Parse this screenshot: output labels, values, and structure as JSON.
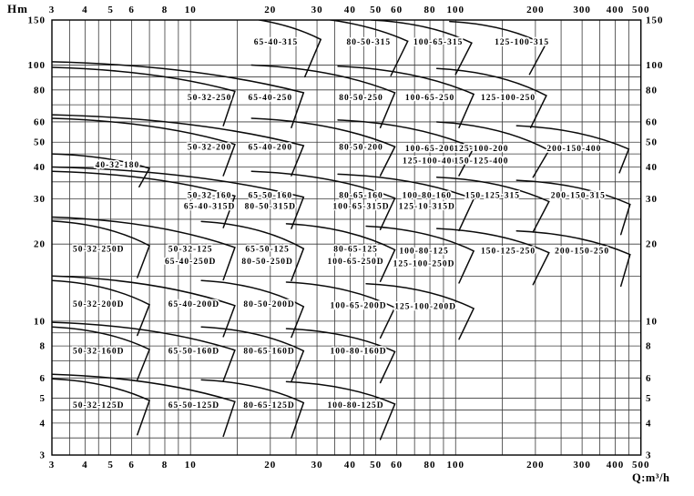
{
  "chart_data": {
    "type": "line",
    "title": "",
    "xlabel": "Q:m³/h",
    "ylabel": "Hm",
    "x_scale": "log",
    "y_scale": "log",
    "xlim": [
      3,
      500
    ],
    "ylim": [
      3,
      150
    ],
    "grid": true,
    "x_ticks": [
      3,
      4,
      5,
      6,
      8,
      10,
      20,
      30,
      40,
      50,
      60,
      80,
      100,
      200,
      300,
      400,
      500
    ],
    "y_ticks": [
      150,
      100,
      80,
      60,
      50,
      40,
      30,
      20,
      10,
      8,
      6,
      5,
      4,
      3
    ],
    "x_gridlines": [
      3,
      3.5,
      4,
      4.5,
      5,
      6,
      7,
      8,
      9,
      10,
      15,
      20,
      25,
      30,
      35,
      40,
      45,
      50,
      60,
      70,
      80,
      90,
      100,
      150,
      200,
      250,
      300,
      350,
      400,
      450,
      500
    ],
    "y_gridlines": [
      3,
      3.5,
      4,
      4.5,
      5,
      6,
      7,
      8,
      9,
      10,
      15,
      20,
      25,
      30,
      35,
      40,
      45,
      50,
      60,
      70,
      80,
      90,
      100,
      150
    ],
    "colors": {
      "grid": "#3a3a3a",
      "curve": "#0a0a0a",
      "text": "#000000",
      "background": "#ffffff"
    },
    "pump_regions": [
      {
        "labels": [
          {
            "text": "65-40-315",
            "q": 21,
            "h": 124
          }
        ],
        "arc_from": [
          13.5,
          155
        ],
        "arc_to": [
          31,
          126
        ],
        "tail": [
          27,
          90
        ]
      },
      {
        "labels": [
          {
            "text": "80-50-315",
            "q": 47,
            "h": 124
          }
        ],
        "arc_from": [
          24,
          155
        ],
        "arc_to": [
          66,
          124
        ],
        "tail": [
          57,
          91
        ]
      },
      {
        "labels": [
          {
            "text": "100-65-315",
            "q": 86,
            "h": 124
          }
        ],
        "arc_from": [
          48,
          150
        ],
        "arc_to": [
          115,
          122
        ],
        "tail": [
          100,
          92
        ]
      },
      {
        "labels": [
          {
            "text": "125-100-315",
            "q": 178,
            "h": 124
          }
        ],
        "arc_from": [
          95,
          148
        ],
        "arc_to": [
          218,
          120
        ],
        "tail": [
          190,
          92
        ]
      },
      {
        "labels": [
          {
            "text": "50-32-250",
            "q": 11.8,
            "h": 75
          }
        ],
        "arc_from": [
          3,
          98
        ],
        "arc_to": [
          14.7,
          79
        ],
        "tail": [
          13.3,
          58
        ]
      },
      {
        "labels": [
          {
            "text": "65-40-250",
            "q": 20,
            "h": 75
          }
        ],
        "arc_from": [
          3,
          103
        ],
        "arc_to": [
          26.7,
          78
        ],
        "tail": [
          24,
          57
        ]
      },
      {
        "labels": [
          {
            "text": "80-50-250",
            "q": 44,
            "h": 75
          }
        ],
        "arc_from": [
          17,
          100
        ],
        "arc_to": [
          59,
          78
        ],
        "tail": [
          52,
          57
        ]
      },
      {
        "labels": [
          {
            "text": "100-65-250",
            "q": 80,
            "h": 75
          }
        ],
        "arc_from": [
          36,
          99
        ],
        "arc_to": [
          117,
          77
        ],
        "tail": [
          103,
          57
        ]
      },
      {
        "labels": [
          {
            "text": "125-100-250",
            "q": 158,
            "h": 75
          }
        ],
        "arc_from": [
          85,
          97
        ],
        "arc_to": [
          220,
          76
        ],
        "tail": [
          192,
          57
        ]
      },
      {
        "labels": [
          {
            "text": "50-32-200",
            "q": 11.8,
            "h": 48
          }
        ],
        "arc_from": [
          3,
          62
        ],
        "arc_to": [
          14.7,
          49
        ],
        "tail": [
          13.3,
          37
        ]
      },
      {
        "labels": [
          {
            "text": "65-40-200",
            "q": 20,
            "h": 48
          }
        ],
        "arc_from": [
          3,
          64
        ],
        "arc_to": [
          26.7,
          48.5
        ],
        "tail": [
          24,
          37
        ]
      },
      {
        "labels": [
          {
            "text": "80-50-200",
            "q": 44,
            "h": 48
          }
        ],
        "arc_from": [
          17,
          62
        ],
        "arc_to": [
          59,
          48
        ],
        "tail": [
          52,
          37
        ]
      },
      {
        "labels": [
          {
            "text": "100-65-200",
            "q": 80,
            "h": 47.5
          },
          {
            "text": "125-100-400",
            "q": 80,
            "h": 42.5
          }
        ],
        "arc_from": [
          36,
          61
        ],
        "arc_to": [
          117,
          47.5
        ],
        "tail": [
          103,
          37
        ]
      },
      {
        "labels": [
          {
            "text": "125-100-200",
            "q": 125,
            "h": 47.5
          },
          {
            "text": "150-125-400",
            "q": 125,
            "h": 42.5
          }
        ],
        "arc_from": [
          85,
          60
        ],
        "arc_to": [
          225,
          46.5
        ],
        "tail": [
          196,
          36.5
        ]
      },
      {
        "labels": [
          {
            "text": "200-150-400",
            "q": 280,
            "h": 47.5
          }
        ],
        "arc_from": [
          170,
          58
        ],
        "arc_to": [
          450,
          47
        ],
        "tail": [
          415,
          38
        ]
      },
      {
        "labels": [
          {
            "text": "40-32-180",
            "q": 5.3,
            "h": 41
          }
        ],
        "arc_from": [
          3,
          45
        ],
        "arc_to": [
          7,
          39.5
        ],
        "tail": [
          6.4,
          33.5
        ]
      },
      {
        "labels": [
          {
            "text": "50-32-160",
            "q": 11.8,
            "h": 31.2
          },
          {
            "text": "65-40-315D",
            "q": 11.8,
            "h": 28.2
          }
        ],
        "arc_from": [
          3,
          38.5
        ],
        "arc_to": [
          14.7,
          30.8
        ],
        "tail": [
          13.3,
          23.2
        ]
      },
      {
        "labels": [
          {
            "text": "65-50-160",
            "q": 20,
            "h": 31.2
          },
          {
            "text": "80-50-315D",
            "q": 20,
            "h": 28.2
          }
        ],
        "arc_from": [
          3,
          40
        ],
        "arc_to": [
          26.7,
          30.5
        ],
        "tail": [
          24,
          23
        ]
      },
      {
        "labels": [
          {
            "text": "80-65-160",
            "q": 44,
            "h": 31.2
          },
          {
            "text": "100-65-315D",
            "q": 44,
            "h": 28.2
          }
        ],
        "arc_from": [
          17,
          38.5
        ],
        "arc_to": [
          59,
          30.2
        ],
        "tail": [
          52,
          22.8
        ]
      },
      {
        "labels": [
          {
            "text": "100-80-160",
            "q": 78,
            "h": 31.2
          },
          {
            "text": "125-10-315D",
            "q": 78,
            "h": 28.2
          }
        ],
        "arc_from": [
          36,
          37.5
        ],
        "arc_to": [
          117,
          30
        ],
        "tail": [
          103,
          22.6
        ]
      },
      {
        "labels": [
          {
            "text": "150-125-315",
            "q": 138,
            "h": 31.2
          }
        ],
        "arc_from": [
          85,
          36.5
        ],
        "arc_to": [
          225,
          29.3
        ],
        "tail": [
          196,
          22.3
        ]
      },
      {
        "labels": [
          {
            "text": "200-150-315",
            "q": 290,
            "h": 31.2
          }
        ],
        "arc_from": [
          170,
          35.5
        ],
        "arc_to": [
          455,
          28.6
        ],
        "tail": [
          420,
          21.8
        ]
      },
      {
        "labels": [
          {
            "text": "50-32-250D",
            "q": 4.5,
            "h": 19.2
          }
        ],
        "arc_from": [
          3,
          24.6
        ],
        "arc_to": [
          7,
          19.7
        ],
        "tail": [
          6.3,
          14.8
        ]
      },
      {
        "labels": [
          {
            "text": "50-32-125",
            "q": 10,
            "h": 19.2
          },
          {
            "text": "65-40-250D",
            "q": 10,
            "h": 17.2
          }
        ],
        "arc_from": [
          3,
          25.5
        ],
        "arc_to": [
          14.7,
          19.4
        ],
        "tail": [
          13.3,
          14.5
        ]
      },
      {
        "labels": [
          {
            "text": "65-50-125",
            "q": 19.5,
            "h": 19.2
          },
          {
            "text": "80-50-250D",
            "q": 19.5,
            "h": 17.2
          }
        ],
        "arc_from": [
          11,
          24.5
        ],
        "arc_to": [
          26.7,
          19.2
        ],
        "tail": [
          24,
          14.4
        ]
      },
      {
        "labels": [
          {
            "text": "80-65-125",
            "q": 42,
            "h": 19.2
          },
          {
            "text": "100-65-250D",
            "q": 42,
            "h": 17.2
          }
        ],
        "arc_from": [
          23,
          24
        ],
        "arc_to": [
          59,
          19
        ],
        "tail": [
          52,
          14.3
        ]
      },
      {
        "labels": [
          {
            "text": "100-80-125",
            "q": 76,
            "h": 18.9
          },
          {
            "text": "125-100-250D",
            "q": 76,
            "h": 16.9
          }
        ],
        "arc_from": [
          46,
          23.5
        ],
        "arc_to": [
          117,
          18.8
        ],
        "tail": [
          103,
          14.1
        ]
      },
      {
        "labels": [
          {
            "text": "150-125-250",
            "q": 158,
            "h": 18.9
          }
        ],
        "arc_from": [
          85,
          23
        ],
        "arc_to": [
          225,
          18.5
        ],
        "tail": [
          196,
          13.9
        ]
      },
      {
        "labels": [
          {
            "text": "200-150-250",
            "q": 300,
            "h": 18.9
          }
        ],
        "arc_from": [
          170,
          22.5
        ],
        "arc_to": [
          455,
          18.2
        ],
        "tail": [
          420,
          13.7
        ]
      },
      {
        "labels": [
          {
            "text": "50-32-200D",
            "q": 4.5,
            "h": 11.7
          }
        ],
        "arc_from": [
          3,
          14.4
        ],
        "arc_to": [
          7,
          11.6
        ],
        "tail": [
          6.3,
          8.8
        ]
      },
      {
        "labels": [
          {
            "text": "65-40-200D",
            "q": 10.3,
            "h": 11.7
          }
        ],
        "arc_from": [
          3,
          15
        ],
        "arc_to": [
          14.7,
          11.5
        ],
        "tail": [
          13.3,
          8.7
        ]
      },
      {
        "labels": [
          {
            "text": "80-50-200D",
            "q": 19.8,
            "h": 11.7
          }
        ],
        "arc_from": [
          11,
          14.4
        ],
        "arc_to": [
          26.7,
          11.4
        ],
        "tail": [
          24,
          8.65
        ]
      },
      {
        "labels": [
          {
            "text": "100-65-200D",
            "q": 43,
            "h": 11.6
          }
        ],
        "arc_from": [
          23,
          14.2
        ],
        "arc_to": [
          59,
          11.3
        ],
        "tail": [
          52,
          8.6
        ]
      },
      {
        "labels": [
          {
            "text": "125-100-200D",
            "q": 77,
            "h": 11.5
          }
        ],
        "arc_from": [
          46,
          14
        ],
        "arc_to": [
          117,
          11.2
        ],
        "tail": [
          103,
          8.5
        ]
      },
      {
        "labels": [
          {
            "text": "50-32-160D",
            "q": 4.5,
            "h": 7.7
          }
        ],
        "arc_from": [
          3,
          9.5
        ],
        "arc_to": [
          7,
          7.75
        ],
        "tail": [
          6.3,
          5.9
        ]
      },
      {
        "labels": [
          {
            "text": "65-50-160D",
            "q": 10.3,
            "h": 7.7
          }
        ],
        "arc_from": [
          3,
          9.9
        ],
        "arc_to": [
          14.7,
          7.7
        ],
        "tail": [
          13.3,
          5.85
        ]
      },
      {
        "labels": [
          {
            "text": "80-65-160D",
            "q": 19.8,
            "h": 7.7
          }
        ],
        "arc_from": [
          11,
          9.5
        ],
        "arc_to": [
          26.7,
          7.65
        ],
        "tail": [
          24,
          5.8
        ]
      },
      {
        "labels": [
          {
            "text": "100-80-160D",
            "q": 43,
            "h": 7.7
          }
        ],
        "arc_from": [
          23,
          9.35
        ],
        "arc_to": [
          59,
          7.6
        ],
        "tail": [
          52,
          5.75
        ]
      },
      {
        "labels": [
          {
            "text": "50-32-125D",
            "q": 4.5,
            "h": 4.72
          }
        ],
        "arc_from": [
          3,
          5.95
        ],
        "arc_to": [
          7,
          4.9
        ],
        "tail": [
          6.3,
          3.6
        ]
      },
      {
        "labels": [
          {
            "text": "65-50-125D",
            "q": 10.3,
            "h": 4.72
          }
        ],
        "arc_from": [
          3,
          6.2
        ],
        "arc_to": [
          14.7,
          4.85
        ],
        "tail": [
          13.3,
          3.55
        ]
      },
      {
        "labels": [
          {
            "text": "80-65-125D",
            "q": 19.8,
            "h": 4.72
          }
        ],
        "arc_from": [
          11,
          5.9
        ],
        "arc_to": [
          26.7,
          4.8
        ],
        "tail": [
          24,
          3.5
        ]
      },
      {
        "labels": [
          {
            "text": "100-80-125D",
            "q": 42,
            "h": 4.72
          }
        ],
        "arc_from": [
          23,
          5.8
        ],
        "arc_to": [
          59,
          4.75
        ],
        "tail": [
          52,
          3.45
        ]
      }
    ]
  }
}
